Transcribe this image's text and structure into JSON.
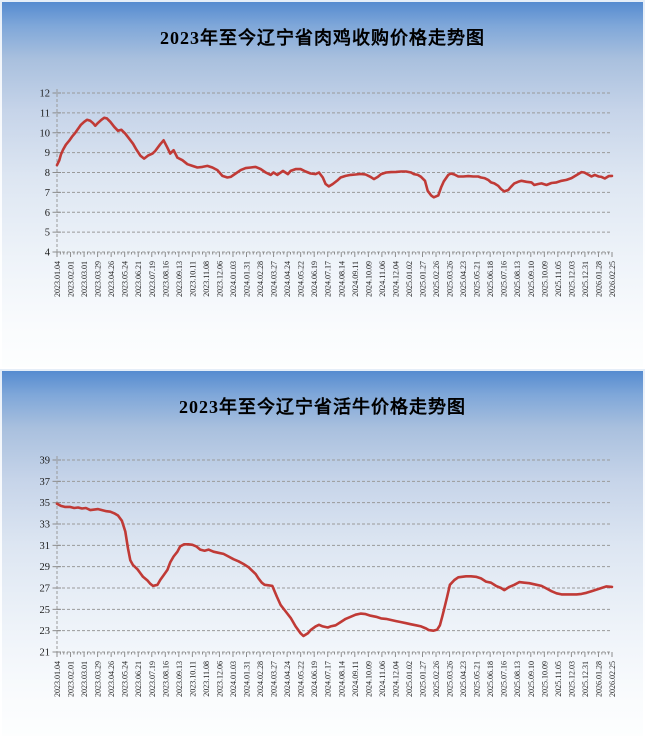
{
  "chart_data": [
    {
      "type": "line",
      "title": "2023年至今辽宁省肉鸡收购价格走势图",
      "line_color": "#c03a36",
      "grid_color": "#9a9a9a",
      "axis_color": "#8c8c8c",
      "label_color": "#1c1c1c",
      "ylim": [
        4,
        12
      ],
      "y_ticks": [
        12,
        11,
        10,
        9,
        8,
        7,
        6,
        5,
        4
      ],
      "minor_ticks_per_label": 4,
      "grid": "dashed",
      "legend": "none",
      "x_labels": [
        "2023.01.04",
        "2023.02.01",
        "2023.03.01",
        "2023.03.29",
        "2023.04.26",
        "2023.05.24",
        "2023.06.21",
        "2023.07.19",
        "2023.08.16",
        "2023.09.13",
        "2023.10.11",
        "2023.11.08",
        "2023.12.06",
        "2024.01.03",
        "2024.01.31",
        "2024.02.28",
        "2024.03.27",
        "2024.04.24",
        "2024.05.22",
        "2024.06.19",
        "2024.07.17",
        "2024.08.14",
        "2024.09.11",
        "2024.10.09",
        "2024.11.06",
        "2024.12.04",
        "2025.01.02",
        "2025.01.27",
        "2025.02.26",
        "2025.03.26",
        "2025.04.23",
        "2025.05.21",
        "2025.06.18",
        "2025.07.16",
        "2025.08.13",
        "2025.09.10",
        "2025.10.09",
        "2025.11.05",
        "2025.12.03",
        "2025.12.31",
        "2026.01.28",
        "2026.02.25"
      ],
      "points": [
        [
          0.0,
          8.37
        ],
        [
          0.004,
          8.6
        ],
        [
          0.007,
          8.9
        ],
        [
          0.011,
          9.15
        ],
        [
          0.016,
          9.4
        ],
        [
          0.022,
          9.6
        ],
        [
          0.027,
          9.8
        ],
        [
          0.033,
          10.0
        ],
        [
          0.038,
          10.2
        ],
        [
          0.043,
          10.4
        ],
        [
          0.049,
          10.55
        ],
        [
          0.054,
          10.65
        ],
        [
          0.06,
          10.6
        ],
        [
          0.065,
          10.48
        ],
        [
          0.069,
          10.35
        ],
        [
          0.074,
          10.5
        ],
        [
          0.08,
          10.65
        ],
        [
          0.085,
          10.75
        ],
        [
          0.09,
          10.72
        ],
        [
          0.096,
          10.55
        ],
        [
          0.103,
          10.3
        ],
        [
          0.11,
          10.1
        ],
        [
          0.116,
          10.15
        ],
        [
          0.123,
          9.95
        ],
        [
          0.13,
          9.7
        ],
        [
          0.137,
          9.45
        ],
        [
          0.143,
          9.15
        ],
        [
          0.15,
          8.85
        ],
        [
          0.157,
          8.7
        ],
        [
          0.164,
          8.85
        ],
        [
          0.172,
          8.95
        ],
        [
          0.177,
          9.08
        ],
        [
          0.186,
          9.42
        ],
        [
          0.192,
          9.62
        ],
        [
          0.199,
          9.25
        ],
        [
          0.204,
          8.95
        ],
        [
          0.21,
          9.12
        ],
        [
          0.217,
          8.75
        ],
        [
          0.226,
          8.62
        ],
        [
          0.235,
          8.42
        ],
        [
          0.244,
          8.33
        ],
        [
          0.253,
          8.25
        ],
        [
          0.262,
          8.28
        ],
        [
          0.271,
          8.33
        ],
        [
          0.28,
          8.25
        ],
        [
          0.289,
          8.12
        ],
        [
          0.298,
          7.83
        ],
        [
          0.307,
          7.75
        ],
        [
          0.313,
          7.78
        ],
        [
          0.322,
          7.95
        ],
        [
          0.331,
          8.12
        ],
        [
          0.34,
          8.22
        ],
        [
          0.349,
          8.25
        ],
        [
          0.358,
          8.28
        ],
        [
          0.367,
          8.17
        ],
        [
          0.376,
          8.0
        ],
        [
          0.385,
          7.88
        ],
        [
          0.39,
          8.0
        ],
        [
          0.397,
          7.88
        ],
        [
          0.407,
          8.08
        ],
        [
          0.416,
          7.92
        ],
        [
          0.421,
          8.08
        ],
        [
          0.43,
          8.17
        ],
        [
          0.439,
          8.17
        ],
        [
          0.448,
          8.05
        ],
        [
          0.457,
          7.95
        ],
        [
          0.466,
          7.92
        ],
        [
          0.472,
          8.0
        ],
        [
          0.479,
          7.75
        ],
        [
          0.484,
          7.42
        ],
        [
          0.49,
          7.3
        ],
        [
          0.497,
          7.42
        ],
        [
          0.506,
          7.62
        ],
        [
          0.511,
          7.75
        ],
        [
          0.52,
          7.83
        ],
        [
          0.529,
          7.88
        ],
        [
          0.538,
          7.9
        ],
        [
          0.547,
          7.93
        ],
        [
          0.556,
          7.9
        ],
        [
          0.565,
          7.78
        ],
        [
          0.571,
          7.67
        ],
        [
          0.578,
          7.78
        ],
        [
          0.584,
          7.92
        ],
        [
          0.593,
          8.0
        ],
        [
          0.602,
          8.02
        ],
        [
          0.611,
          8.03
        ],
        [
          0.62,
          8.05
        ],
        [
          0.629,
          8.05
        ],
        [
          0.638,
          8.0
        ],
        [
          0.643,
          7.92
        ],
        [
          0.65,
          7.88
        ],
        [
          0.656,
          7.78
        ],
        [
          0.663,
          7.58
        ],
        [
          0.668,
          7.08
        ],
        [
          0.674,
          6.85
        ],
        [
          0.679,
          6.75
        ],
        [
          0.687,
          6.85
        ],
        [
          0.692,
          7.25
        ],
        [
          0.697,
          7.55
        ],
        [
          0.705,
          7.88
        ],
        [
          0.71,
          7.95
        ],
        [
          0.716,
          7.9
        ],
        [
          0.723,
          7.8
        ],
        [
          0.732,
          7.8
        ],
        [
          0.741,
          7.82
        ],
        [
          0.75,
          7.8
        ],
        [
          0.759,
          7.8
        ],
        [
          0.764,
          7.75
        ],
        [
          0.77,
          7.72
        ],
        [
          0.777,
          7.63
        ],
        [
          0.782,
          7.5
        ],
        [
          0.788,
          7.45
        ],
        [
          0.795,
          7.33
        ],
        [
          0.8,
          7.17
        ],
        [
          0.806,
          7.05
        ],
        [
          0.813,
          7.12
        ],
        [
          0.818,
          7.28
        ],
        [
          0.824,
          7.45
        ],
        [
          0.831,
          7.53
        ],
        [
          0.837,
          7.58
        ],
        [
          0.846,
          7.53
        ],
        [
          0.855,
          7.5
        ],
        [
          0.86,
          7.37
        ],
        [
          0.867,
          7.42
        ],
        [
          0.873,
          7.45
        ],
        [
          0.882,
          7.37
        ],
        [
          0.891,
          7.47
        ],
        [
          0.9,
          7.5
        ],
        [
          0.909,
          7.58
        ],
        [
          0.918,
          7.63
        ],
        [
          0.927,
          7.72
        ],
        [
          0.936,
          7.87
        ],
        [
          0.945,
          8.02
        ],
        [
          0.95,
          8.0
        ],
        [
          0.958,
          7.88
        ],
        [
          0.963,
          7.8
        ],
        [
          0.969,
          7.88
        ],
        [
          0.976,
          7.8
        ],
        [
          0.981,
          7.78
        ],
        [
          0.987,
          7.7
        ],
        [
          0.994,
          7.82
        ],
        [
          1.0,
          7.83
        ]
      ]
    },
    {
      "type": "line",
      "title": "2023年至今辽宁省活牛价格走势图",
      "line_color": "#c03a36",
      "grid_color": "#9a9a9a",
      "axis_color": "#8c8c8c",
      "label_color": "#1c1c1c",
      "ylim": [
        21,
        39
      ],
      "y_ticks": [
        39,
        37,
        35,
        33,
        31,
        29,
        27,
        25,
        23,
        21
      ],
      "minor_ticks_per_label": 4,
      "grid": "dashed",
      "legend": "none",
      "x_labels": [
        "2023.01.04",
        "2023.02.01",
        "2023.03.01",
        "2023.03.29",
        "2023.04.26",
        "2023.05.24",
        "2023.06.21",
        "2023.07.19",
        "2023.08.16",
        "2023.09.13",
        "2023.10.11",
        "2023.11.08",
        "2023.12.06",
        "2024.01.03",
        "2024.01.31",
        "2024.02.28",
        "2024.03.27",
        "2024.04.24",
        "2024.05.22",
        "2024.06.19",
        "2024.07.17",
        "2024.08.14",
        "2024.09.11",
        "2024.10.09",
        "2024.11.06",
        "2024.12.04",
        "2025.01.02",
        "2025.01.27",
        "2025.02.26",
        "2025.03.26",
        "2025.04.23",
        "2025.05.21",
        "2025.06.18",
        "2025.07.16",
        "2025.08.13",
        "2025.09.10",
        "2025.10.09",
        "2025.11.05",
        "2025.12.03",
        "2025.12.31",
        "2026.01.28",
        "2026.02.25"
      ],
      "points": [
        [
          0.0,
          34.9
        ],
        [
          0.007,
          34.7
        ],
        [
          0.014,
          34.6
        ],
        [
          0.023,
          34.6
        ],
        [
          0.031,
          34.5
        ],
        [
          0.038,
          34.55
        ],
        [
          0.045,
          34.45
        ],
        [
          0.052,
          34.5
        ],
        [
          0.06,
          34.3
        ],
        [
          0.067,
          34.35
        ],
        [
          0.074,
          34.4
        ],
        [
          0.081,
          34.3
        ],
        [
          0.089,
          34.2
        ],
        [
          0.096,
          34.15
        ],
        [
          0.103,
          34.0
        ],
        [
          0.11,
          33.8
        ],
        [
          0.117,
          33.3
        ],
        [
          0.123,
          32.3
        ],
        [
          0.128,
          30.7
        ],
        [
          0.132,
          29.6
        ],
        [
          0.137,
          29.15
        ],
        [
          0.145,
          28.75
        ],
        [
          0.15,
          28.4
        ],
        [
          0.155,
          28.05
        ],
        [
          0.163,
          27.7
        ],
        [
          0.168,
          27.4
        ],
        [
          0.173,
          27.2
        ],
        [
          0.181,
          27.3
        ],
        [
          0.186,
          27.75
        ],
        [
          0.192,
          28.2
        ],
        [
          0.199,
          28.7
        ],
        [
          0.204,
          29.4
        ],
        [
          0.21,
          29.95
        ],
        [
          0.217,
          30.4
        ],
        [
          0.222,
          30.9
        ],
        [
          0.229,
          31.1
        ],
        [
          0.237,
          31.1
        ],
        [
          0.244,
          31.05
        ],
        [
          0.251,
          30.9
        ],
        [
          0.258,
          30.6
        ],
        [
          0.266,
          30.5
        ],
        [
          0.273,
          30.6
        ],
        [
          0.282,
          30.4
        ],
        [
          0.291,
          30.3
        ],
        [
          0.3,
          30.2
        ],
        [
          0.309,
          29.95
        ],
        [
          0.318,
          29.7
        ],
        [
          0.327,
          29.5
        ],
        [
          0.336,
          29.25
        ],
        [
          0.345,
          28.95
        ],
        [
          0.352,
          28.6
        ],
        [
          0.358,
          28.3
        ],
        [
          0.363,
          27.9
        ],
        [
          0.369,
          27.5
        ],
        [
          0.374,
          27.3
        ],
        [
          0.381,
          27.25
        ],
        [
          0.388,
          27.2
        ],
        [
          0.396,
          26.2
        ],
        [
          0.403,
          25.4
        ],
        [
          0.412,
          24.8
        ],
        [
          0.421,
          24.2
        ],
        [
          0.43,
          23.4
        ],
        [
          0.439,
          22.75
        ],
        [
          0.444,
          22.5
        ],
        [
          0.452,
          22.75
        ],
        [
          0.457,
          23.05
        ],
        [
          0.466,
          23.4
        ],
        [
          0.472,
          23.55
        ],
        [
          0.479,
          23.4
        ],
        [
          0.488,
          23.3
        ],
        [
          0.493,
          23.4
        ],
        [
          0.502,
          23.5
        ],
        [
          0.511,
          23.8
        ],
        [
          0.52,
          24.1
        ],
        [
          0.529,
          24.3
        ],
        [
          0.538,
          24.5
        ],
        [
          0.547,
          24.6
        ],
        [
          0.556,
          24.55
        ],
        [
          0.565,
          24.4
        ],
        [
          0.575,
          24.3
        ],
        [
          0.584,
          24.15
        ],
        [
          0.593,
          24.1
        ],
        [
          0.602,
          24.0
        ],
        [
          0.611,
          23.9
        ],
        [
          0.62,
          23.8
        ],
        [
          0.629,
          23.7
        ],
        [
          0.638,
          23.6
        ],
        [
          0.647,
          23.5
        ],
        [
          0.656,
          23.4
        ],
        [
          0.665,
          23.2
        ],
        [
          0.67,
          23.05
        ],
        [
          0.678,
          23.0
        ],
        [
          0.685,
          23.1
        ],
        [
          0.69,
          23.5
        ],
        [
          0.694,
          24.3
        ],
        [
          0.697,
          24.9
        ],
        [
          0.703,
          26.2
        ],
        [
          0.708,
          27.3
        ],
        [
          0.716,
          27.75
        ],
        [
          0.723,
          28.0
        ],
        [
          0.73,
          28.05
        ],
        [
          0.737,
          28.1
        ],
        [
          0.746,
          28.1
        ],
        [
          0.755,
          28.05
        ],
        [
          0.764,
          27.9
        ],
        [
          0.773,
          27.6
        ],
        [
          0.782,
          27.5
        ],
        [
          0.791,
          27.2
        ],
        [
          0.8,
          27.0
        ],
        [
          0.806,
          26.8
        ],
        [
          0.815,
          27.1
        ],
        [
          0.824,
          27.3
        ],
        [
          0.833,
          27.55
        ],
        [
          0.842,
          27.5
        ],
        [
          0.851,
          27.45
        ],
        [
          0.86,
          27.35
        ],
        [
          0.873,
          27.2
        ],
        [
          0.882,
          26.95
        ],
        [
          0.891,
          26.7
        ],
        [
          0.9,
          26.5
        ],
        [
          0.909,
          26.4
        ],
        [
          0.918,
          26.4
        ],
        [
          0.927,
          26.4
        ],
        [
          0.936,
          26.4
        ],
        [
          0.945,
          26.45
        ],
        [
          0.954,
          26.55
        ],
        [
          0.963,
          26.7
        ],
        [
          0.972,
          26.85
        ],
        [
          0.981,
          27.0
        ],
        [
          0.99,
          27.15
        ],
        [
          1.0,
          27.1
        ]
      ]
    }
  ]
}
